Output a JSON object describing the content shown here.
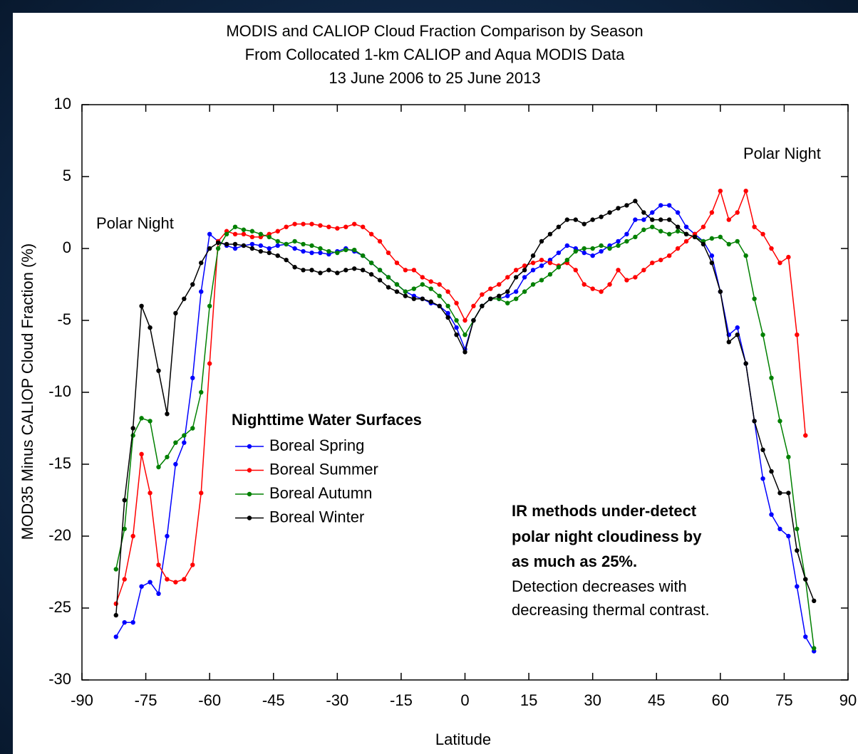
{
  "chart_data": {
    "type": "line",
    "title": [
      "MODIS and CALIOP Cloud Fraction Comparison by Season",
      "From Collocated 1-km CALIOP and Aqua MODIS Data",
      "13 June 2006 to 25 June 2013"
    ],
    "x_label": "Latitude",
    "y_label": "MOD35 Minus CALIOP Cloud Fraction (%)",
    "legend_title": "Nighttime Water Surfaces",
    "annotations": [
      "Polar Night",
      "Polar Night"
    ],
    "note_bold": [
      "IR methods under-detect",
      "polar night cloudiness by",
      "as much as 25%."
    ],
    "note": [
      "Detection decreases with",
      "decreasing thermal contrast."
    ],
    "xlim": [
      -90,
      90
    ],
    "xticks": [
      -90,
      -75,
      -60,
      -45,
      -30,
      -15,
      0,
      15,
      30,
      45,
      60,
      75,
      90
    ],
    "ylim": [
      -30,
      10
    ],
    "yticks": [
      -30,
      -25,
      -20,
      -15,
      -10,
      -5,
      0,
      5,
      10
    ],
    "grid": false,
    "x": [
      -82,
      -80,
      -78,
      -76,
      -74,
      -72,
      -70,
      -68,
      -66,
      -64,
      -62,
      -60,
      -58,
      -56,
      -54,
      -52,
      -50,
      -48,
      -46,
      -44,
      -42,
      -40,
      -38,
      -36,
      -34,
      -32,
      -30,
      -28,
      -26,
      -24,
      -22,
      -20,
      -18,
      -16,
      -14,
      -12,
      -10,
      -8,
      -6,
      -4,
      -2,
      0,
      2,
      4,
      6,
      8,
      10,
      12,
      14,
      16,
      18,
      20,
      22,
      24,
      26,
      28,
      30,
      32,
      34,
      36,
      38,
      40,
      42,
      44,
      46,
      48,
      50,
      52,
      54,
      56,
      58,
      60,
      62,
      64,
      66,
      68,
      70,
      72,
      74,
      76,
      78,
      80,
      82
    ],
    "series": [
      {
        "name": "Boreal Spring",
        "color": "#0000ff",
        "values": [
          -27,
          -26,
          -26,
          -23.5,
          -23.2,
          -24,
          -20,
          -15,
          -13.5,
          -9,
          -3,
          1,
          0.5,
          0.2,
          0,
          0.2,
          0.3,
          0.2,
          0,
          0.2,
          0.3,
          0,
          -0.2,
          -0.3,
          -0.3,
          -0.4,
          -0.2,
          0,
          -0.2,
          -0.5,
          -1,
          -1.5,
          -2,
          -2.5,
          -3,
          -3.3,
          -3.5,
          -3.8,
          -4,
          -4.5,
          -5.5,
          -7,
          -5,
          -4,
          -3.5,
          -3.5,
          -3.3,
          -3,
          -2,
          -1.5,
          -1.2,
          -0.8,
          -0.3,
          0.2,
          0,
          -0.3,
          -0.5,
          -0.2,
          0.2,
          0.5,
          1,
          2,
          2,
          2.5,
          3,
          3,
          2.5,
          1.5,
          1,
          0.5,
          -0.5,
          -3,
          -6,
          -5.5,
          -8,
          -12,
          -16,
          -18.5,
          -19.5,
          -20,
          -23.5,
          -27,
          -28
        ]
      },
      {
        "name": "Boreal Summer",
        "color": "#ff0000",
        "values": [
          -24.7,
          -23,
          -20,
          -14.3,
          -17,
          -22,
          -23,
          -23.2,
          -23,
          -22,
          -17,
          -8,
          0.5,
          1.2,
          1,
          1,
          0.8,
          0.8,
          1,
          1.2,
          1.5,
          1.7,
          1.7,
          1.7,
          1.6,
          1.5,
          1.4,
          1.5,
          1.7,
          1.5,
          1,
          0.5,
          -0.3,
          -1,
          -1.5,
          -1.5,
          -2,
          -2.3,
          -2.5,
          -3,
          -3.8,
          -5,
          -4,
          -3.2,
          -2.8,
          -2.5,
          -2,
          -1.5,
          -1.2,
          -1,
          -0.8,
          -1,
          -1.2,
          -1,
          -1.5,
          -2.5,
          -2.8,
          -3,
          -2.5,
          -1.5,
          -2.2,
          -2,
          -1.5,
          -1,
          -0.8,
          -0.5,
          0,
          0.5,
          1,
          1.5,
          2.5,
          4,
          2,
          2.5,
          4,
          1.5,
          1,
          0,
          -1,
          -0.6,
          -6,
          -13,
          null
        ]
      },
      {
        "name": "Boreal Autumn",
        "color": "#008000",
        "values": [
          -22.3,
          -19.5,
          -13,
          -11.8,
          -12,
          -15.2,
          -14.5,
          -13.5,
          -13,
          -12.5,
          -10,
          -4,
          0,
          1,
          1.5,
          1.3,
          1.2,
          1,
          0.8,
          0.5,
          0.3,
          0.5,
          0.3,
          0.2,
          0,
          -0.2,
          -0.3,
          -0.1,
          -0.1,
          -0.5,
          -1,
          -1.5,
          -2,
          -2.5,
          -3,
          -2.8,
          -2.5,
          -2.8,
          -3.3,
          -4,
          -5,
          -6,
          -5,
          -4,
          -3.5,
          -3.5,
          -3.8,
          -3.5,
          -3,
          -2.5,
          -2.2,
          -1.8,
          -1.3,
          -0.8,
          -0.2,
          0,
          0,
          0.2,
          0,
          0.2,
          0.5,
          0.8,
          1.3,
          1.5,
          1.2,
          1,
          1.2,
          1,
          0.8,
          0.5,
          0.7,
          0.8,
          0.3,
          0.5,
          -0.5,
          -3.5,
          -6,
          -9,
          -12,
          -14.5,
          -19.5,
          -23,
          -27.8
        ]
      },
      {
        "name": "Boreal Winter",
        "color": "#000000",
        "values": [
          -25.5,
          -17.5,
          -12.5,
          -4,
          -5.5,
          -8.5,
          -11.5,
          -4.5,
          -3.5,
          -2.5,
          -1,
          0,
          0.4,
          0.3,
          0.3,
          0.2,
          0,
          -0.2,
          -0.3,
          -0.5,
          -0.8,
          -1.3,
          -1.5,
          -1.5,
          -1.7,
          -1.5,
          -1.7,
          -1.5,
          -1.4,
          -1.5,
          -1.8,
          -2.2,
          -2.7,
          -3,
          -3.3,
          -3.5,
          -3.5,
          -3.7,
          -4,
          -4.8,
          -6,
          -7.2,
          -5,
          -4,
          -3.5,
          -3.3,
          -3,
          -2,
          -1.5,
          -0.5,
          0.5,
          1,
          1.5,
          2,
          2,
          1.7,
          2,
          2.2,
          2.5,
          2.8,
          3,
          3.3,
          2.5,
          2,
          2,
          2,
          1.5,
          1,
          0.8,
          0.3,
          -1,
          -3,
          -6.5,
          -6,
          -8,
          -12,
          -14,
          -15.5,
          -17,
          -17,
          -21,
          -23,
          -24.5
        ]
      }
    ]
  }
}
